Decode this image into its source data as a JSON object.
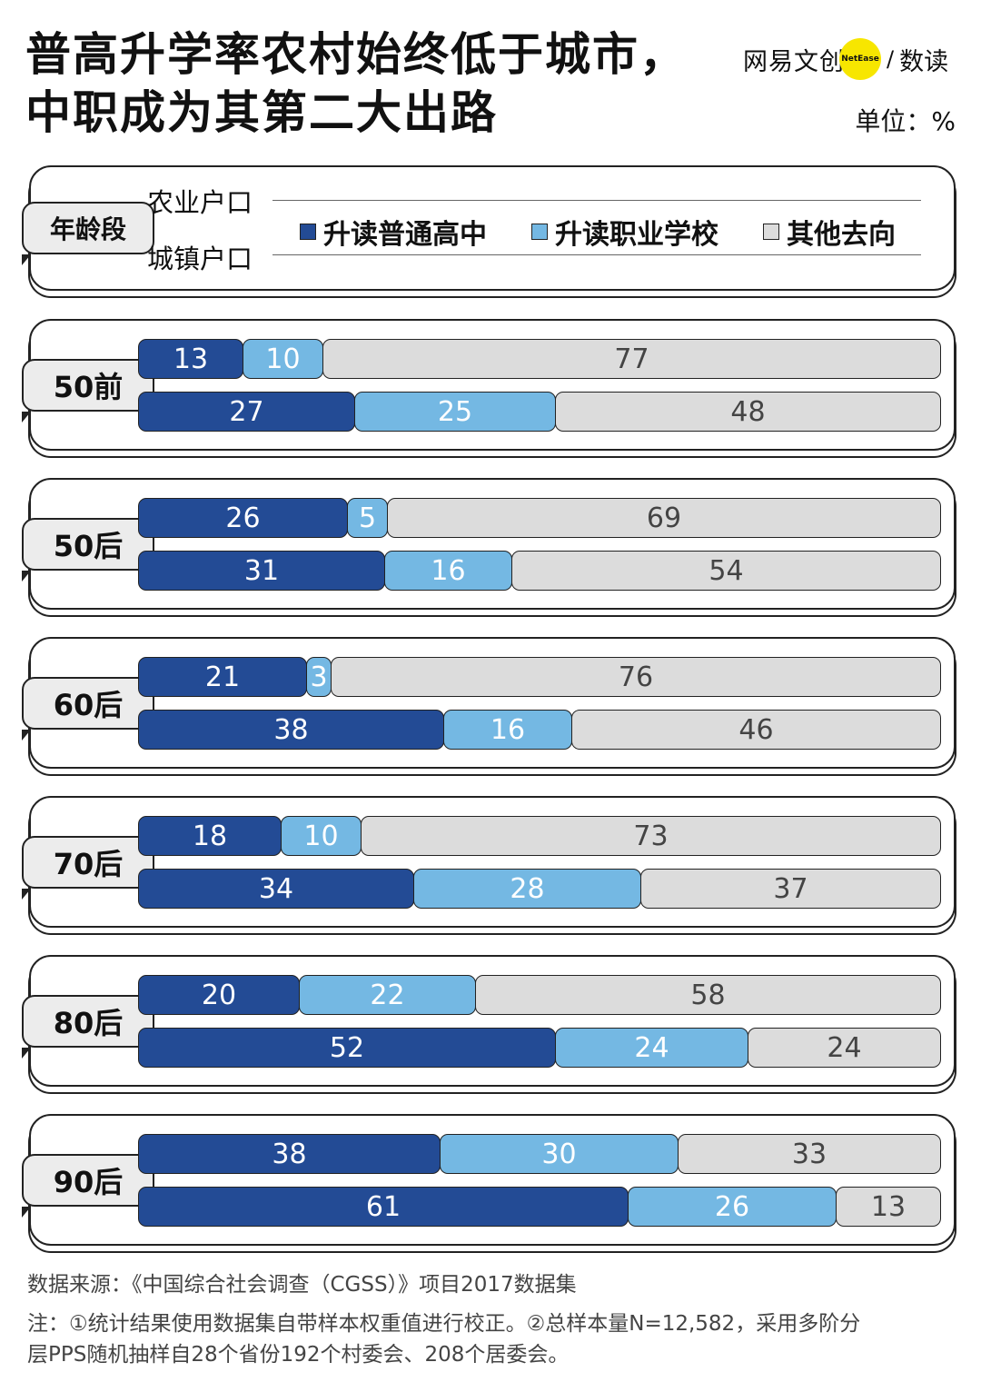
{
  "header": {
    "title_line1": "普高升学率农村始终低于城市，",
    "title_line2": "中职成为其第二大出路",
    "brand_name": "网易文创",
    "brand_badge": "NetEase",
    "brand_slash": "/",
    "brand_sub": "数读",
    "unit": "单位：%"
  },
  "legend": {
    "group_label": "年龄段",
    "row_top": "农业户口",
    "row_bottom": "城镇户口",
    "items": [
      {
        "label": "升读普通高中",
        "color": "#234b95"
      },
      {
        "label": "升读职业学校",
        "color": "#74b8e3"
      },
      {
        "label": "其他去向",
        "color": "#dcdcdc"
      }
    ]
  },
  "chart_data": {
    "type": "bar",
    "orientation": "horizontal",
    "stacked": true,
    "title": "普高升学率农村始终低于城市，中职成为其第二大出路",
    "unit": "%",
    "series_names": [
      "升读普通高中",
      "升读职业学校",
      "其他去向"
    ],
    "rows": [
      "农业户口",
      "城镇户口"
    ],
    "groups": [
      {
        "label": "50前",
        "rural": [
          13,
          10,
          77
        ],
        "urban": [
          27,
          25,
          48
        ]
      },
      {
        "label": "50后",
        "rural": [
          26,
          5,
          69
        ],
        "urban": [
          31,
          16,
          54
        ]
      },
      {
        "label": "60后",
        "rural": [
          21,
          3,
          76
        ],
        "urban": [
          38,
          16,
          46
        ]
      },
      {
        "label": "70后",
        "rural": [
          18,
          10,
          73
        ],
        "urban": [
          34,
          28,
          37
        ]
      },
      {
        "label": "80后",
        "rural": [
          20,
          22,
          58
        ],
        "urban": [
          52,
          24,
          24
        ]
      },
      {
        "label": "90后",
        "rural": [
          38,
          30,
          33
        ],
        "urban": [
          61,
          26,
          13
        ]
      }
    ]
  },
  "footer": {
    "source": "数据来源：《中国综合社会调查（CGSS）》项目2017数据集",
    "note_line1": "注：①统计结果使用数据集自带样本权重值进行校正。②总样本量N=12,582，采用多阶分",
    "note_line2": "层PPS随机抽样自28个省份192个村委会、208个居委会。"
  }
}
